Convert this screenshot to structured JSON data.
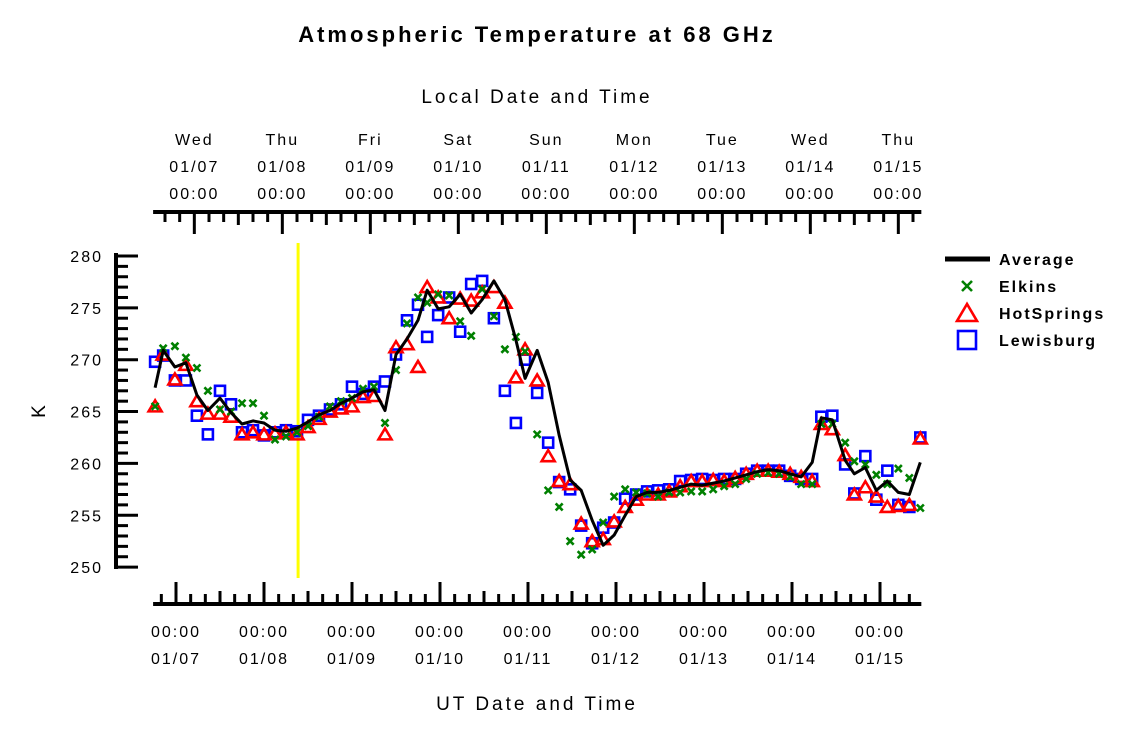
{
  "chart_data": {
    "type": "line",
    "title": "Atmospheric Temperature at 68 GHz",
    "top_axis_label": "Local Date and Time",
    "xlabel": "UT Date and Time",
    "ylabel": "K",
    "ylim": [
      249,
      281
    ],
    "yticks": [
      "250",
      "255",
      "260",
      "265",
      "270",
      "275",
      "280"
    ],
    "x_units": "hours since 01/07 00:00 UT",
    "local_offset_hours": -5,
    "marker_line_hours": 33.3,
    "marker_line_color": "#ffff00",
    "bottom_ticks": [
      {
        "time": "00:00",
        "date": "01/07"
      },
      {
        "time": "00:00",
        "date": "01/08"
      },
      {
        "time": "00:00",
        "date": "01/09"
      },
      {
        "time": "00:00",
        "date": "01/10"
      },
      {
        "time": "00:00",
        "date": "01/11"
      },
      {
        "time": "00:00",
        "date": "01/12"
      },
      {
        "time": "00:00",
        "date": "01/13"
      },
      {
        "time": "00:00",
        "date": "01/14"
      },
      {
        "time": "00:00",
        "date": "01/15"
      }
    ],
    "top_ticks": [
      {
        "day": "Wed",
        "date": "01/07",
        "time": "00:00"
      },
      {
        "day": "Thu",
        "date": "01/08",
        "time": "00:00"
      },
      {
        "day": "Fri",
        "date": "01/09",
        "time": "00:00"
      },
      {
        "day": "Sat",
        "date": "01/10",
        "time": "00:00"
      },
      {
        "day": "Sun",
        "date": "01/11",
        "time": "00:00"
      },
      {
        "day": "Mon",
        "date": "01/12",
        "time": "00:00"
      },
      {
        "day": "Tue",
        "date": "01/13",
        "time": "00:00"
      },
      {
        "day": "Wed",
        "date": "01/14",
        "time": "00:00"
      },
      {
        "day": "Thu",
        "date": "01/15",
        "time": "00:00"
      }
    ],
    "x": [
      -5.7,
      -3.5,
      -0.3,
      2.7,
      5.7,
      8.7,
      12,
      15,
      18,
      21,
      24,
      27,
      30,
      33,
      36,
      39,
      42,
      45,
      48,
      51,
      54,
      57,
      60,
      63,
      66,
      68.5,
      71.5,
      74.5,
      77.5,
      80.5,
      83.5,
      86.7,
      89.7,
      92.7,
      95.2,
      98.5,
      101.5,
      104.5,
      107.5,
      110.5,
      113.5,
      116.5,
      119.5,
      122.5,
      125.5,
      128.5,
      131.5,
      134.5,
      137.5,
      140.5,
      143.5,
      146.5,
      149.5,
      152.5,
      155.5,
      158.5,
      161.5,
      164.5,
      167.5,
      170.5,
      173.5,
      176,
      179,
      182.5,
      185,
      188,
      191,
      194,
      197,
      200,
      203
    ],
    "series": [
      {
        "name": "Average",
        "color": "#000000",
        "style": "line",
        "values": [
          267.3,
          270.9,
          269.3,
          269.7,
          266.6,
          265.1,
          266.3,
          264.9,
          263.8,
          264.1,
          263.9,
          263.2,
          263.1,
          263.4,
          264.0,
          264.7,
          265.1,
          265.8,
          266.3,
          266.9,
          267.1,
          265.1,
          270.5,
          272.0,
          273.8,
          276.7,
          274.9,
          275.1,
          276.3,
          274.5,
          275.8,
          277.6,
          275.8,
          271.9,
          268.2,
          270.9,
          267.8,
          262.7,
          258.4,
          257.4,
          254.5,
          252.1,
          253.1,
          255.0,
          256.8,
          257.2,
          257.2,
          257.4,
          257.7,
          258.0,
          257.9,
          258.1,
          258.3,
          258.6,
          258.9,
          259.2,
          259.4,
          259.3,
          259.0,
          258.7,
          260.1,
          264.4,
          264.2,
          260.3,
          259.0,
          259.6,
          257.4,
          258.3,
          257.2,
          257.0,
          260.1
        ]
      },
      {
        "name": "Elkins",
        "color": "#008000",
        "style": "x",
        "values": [
          265.5,
          271.1,
          271.3,
          270.2,
          269.2,
          267.0,
          265.2,
          265.0,
          265.8,
          265.8,
          264.6,
          262.3,
          262.6,
          263.0,
          263.6,
          264.5,
          265.5,
          266.0,
          266.3,
          267.2,
          267.4,
          263.9,
          269.0,
          273.5,
          276.0,
          275.5,
          276.3,
          276.2,
          273.7,
          272.3,
          276.8,
          274.2,
          271.0,
          272.2,
          270.8,
          262.8,
          257.4,
          255.8,
          252.5,
          251.2,
          251.7,
          254.3,
          256.8,
          257.5,
          257.2,
          257.1,
          256.8,
          257.2,
          257.2,
          257.3,
          257.3,
          257.5,
          257.8,
          258.0,
          258.5,
          259.0,
          259.1,
          259.0,
          258.7,
          258.0,
          258.0,
          263.8,
          263.8,
          262.0,
          260.2,
          259.9,
          258.9,
          258.0,
          259.5,
          258.6,
          255.7
        ]
      },
      {
        "name": "HotSprings",
        "color": "#ff0000",
        "style": "triangle",
        "values": [
          265.5,
          270.5,
          268.1,
          269.5,
          266.0,
          264.8,
          264.8,
          264.5,
          262.8,
          263.0,
          262.8,
          262.9,
          263.0,
          262.8,
          263.5,
          264.3,
          265.0,
          265.3,
          265.5,
          266.4,
          266.5,
          262.8,
          271.2,
          271.5,
          269.3,
          277.0,
          276.0,
          274.0,
          275.9,
          275.7,
          276.5,
          277.0,
          275.5,
          268.3,
          271.0,
          268.0,
          260.7,
          258.3,
          258.0,
          254.2,
          252.5,
          252.7,
          254.4,
          255.8,
          256.5,
          257.0,
          257.0,
          257.3,
          257.8,
          258.3,
          258.3,
          258.4,
          258.3,
          258.6,
          259.0,
          259.3,
          259.3,
          259.2,
          259.0,
          258.7,
          258.3,
          263.8,
          263.3,
          260.8,
          257.0,
          257.7,
          256.8,
          255.8,
          255.9,
          256.0,
          262.4
        ]
      },
      {
        "name": "Lewisburg",
        "color": "#0000ff",
        "style": "square",
        "values": [
          269.8,
          270.4,
          268.0,
          268.0,
          264.6,
          262.8,
          267.0,
          265.7,
          263.0,
          263.2,
          262.7,
          263.0,
          263.2,
          263.1,
          264.2,
          264.6,
          265.2,
          265.7,
          267.4,
          266.7,
          267.4,
          267.9,
          270.5,
          273.8,
          275.3,
          272.2,
          274.3,
          276.0,
          272.7,
          277.3,
          277.6,
          274.0,
          267.0,
          263.9,
          270.0,
          266.8,
          262.0,
          258.2,
          257.5,
          254.0,
          252.3,
          253.8,
          254.3,
          256.6,
          257.0,
          257.3,
          257.4,
          257.5,
          258.3,
          258.4,
          258.5,
          258.4,
          258.5,
          258.5,
          259.0,
          259.3,
          259.3,
          259.3,
          258.8,
          258.5,
          258.5,
          264.5,
          264.6,
          259.9,
          257.1,
          260.7,
          256.5,
          259.3,
          256.0,
          255.8,
          262.5
        ]
      }
    ],
    "legend_position": "right"
  }
}
